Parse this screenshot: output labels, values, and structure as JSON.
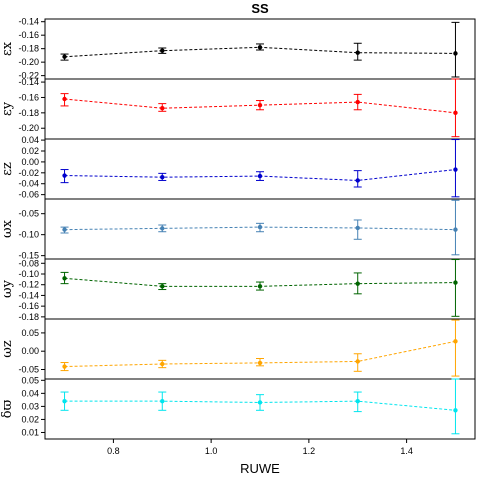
{
  "chart_data": {
    "type": "line",
    "title": "SS",
    "xlabel": "RUWE",
    "x": [
      0.7,
      0.9,
      1.1,
      1.3,
      1.5
    ],
    "xlim": [
      0.66,
      1.54
    ],
    "xticks": [
      "0.8",
      "1.0",
      "1.2",
      "1.4"
    ],
    "grid": false,
    "panels": [
      {
        "ylabel": "εx",
        "color": "#000000",
        "ylim": [
          -0.225,
          -0.136
        ],
        "yticks": [
          "-0.14",
          "-0.16",
          "-0.18",
          "-0.20",
          "-0.22"
        ],
        "values": [
          -0.192,
          -0.183,
          -0.178,
          -0.186,
          -0.187
        ],
        "err_low": [
          -0.197,
          -0.187,
          -0.182,
          -0.197,
          -0.222
        ],
        "err_high": [
          -0.188,
          -0.179,
          -0.173,
          -0.172,
          -0.141
        ]
      },
      {
        "ylabel": "εy",
        "color": "#ff0000",
        "ylim": [
          -0.214,
          -0.136
        ],
        "yticks": [
          "-0.14",
          "-0.16",
          "-0.18",
          "-0.20"
        ],
        "values": [
          -0.162,
          -0.174,
          -0.17,
          -0.166,
          -0.18
        ],
        "err_low": [
          -0.171,
          -0.178,
          -0.176,
          -0.176,
          -0.211
        ],
        "err_high": [
          -0.155,
          -0.168,
          -0.164,
          -0.156,
          -0.125
        ]
      },
      {
        "ylabel": "εz",
        "color": "#0000cd",
        "ylim": [
          -0.068,
          0.042
        ],
        "yticks": [
          "0.04",
          "0.02",
          "0.00",
          "-0.02",
          "-0.04",
          "-0.06"
        ],
        "values": [
          -0.025,
          -0.028,
          -0.026,
          -0.034,
          -0.014
        ],
        "err_low": [
          -0.038,
          -0.034,
          -0.034,
          -0.046,
          -0.064
        ],
        "err_high": [
          -0.014,
          -0.021,
          -0.018,
          -0.016,
          0.041
        ]
      },
      {
        "ylabel": "ωx",
        "color": "#4682b4",
        "ylim": [
          -0.158,
          -0.015
        ],
        "yticks": [
          "-0.05",
          "-0.10",
          "-0.15"
        ],
        "values": [
          -0.088,
          -0.085,
          -0.082,
          -0.084,
          -0.088
        ],
        "err_low": [
          -0.096,
          -0.093,
          -0.093,
          -0.111,
          -0.148
        ],
        "err_high": [
          -0.082,
          -0.077,
          -0.073,
          -0.065,
          -0.018
        ]
      },
      {
        "ylabel": "ωy",
        "color": "#006400",
        "ylim": [
          -0.184,
          -0.072
        ],
        "yticks": [
          "-0.08",
          "-0.10",
          "-0.12",
          "-0.14",
          "-0.16",
          "-0.18"
        ],
        "values": [
          -0.108,
          -0.123,
          -0.123,
          -0.118,
          -0.116
        ],
        "err_low": [
          -0.118,
          -0.129,
          -0.13,
          -0.137,
          -0.179
        ],
        "err_high": [
          -0.097,
          -0.118,
          -0.115,
          -0.098,
          -0.073
        ]
      },
      {
        "ylabel": "ωz",
        "color": "#ffa500",
        "ylim": [
          -0.076,
          0.088
        ],
        "yticks": [
          "0.05",
          "0.00",
          "-0.05"
        ],
        "values": [
          -0.042,
          -0.035,
          -0.032,
          -0.028,
          0.027
        ],
        "err_low": [
          -0.053,
          -0.045,
          -0.04,
          -0.055,
          -0.068
        ],
        "err_high": [
          -0.031,
          -0.025,
          -0.02,
          -0.007,
          0.085
        ]
      },
      {
        "ylabel": "δϖ",
        "color": "#00e5ee",
        "ylim": [
          0.005,
          0.051
        ],
        "yticks": [
          "0.05",
          "0.04",
          "0.03",
          "0.02",
          "0.01"
        ],
        "values": [
          0.034,
          0.034,
          0.033,
          0.034,
          0.027
        ],
        "err_low": [
          0.027,
          0.027,
          0.027,
          0.026,
          0.009
        ],
        "err_high": [
          0.041,
          0.041,
          0.039,
          0.041,
          0.052
        ]
      }
    ]
  }
}
